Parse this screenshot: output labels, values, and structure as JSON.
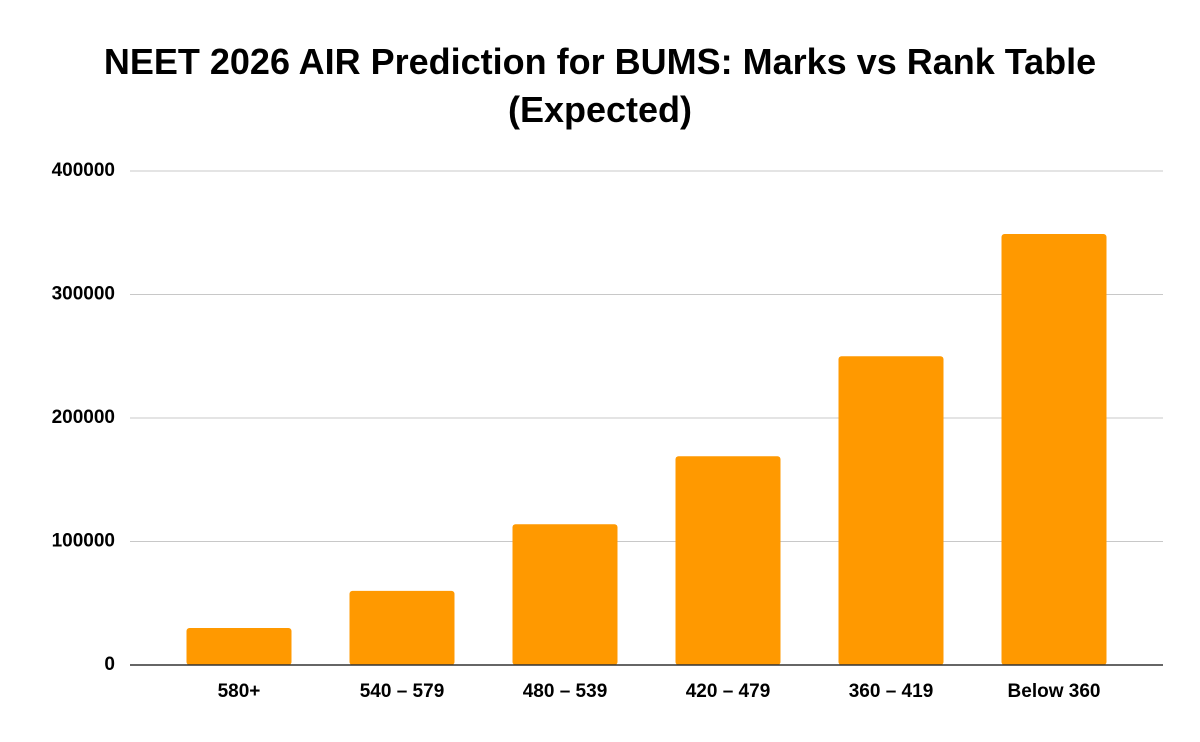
{
  "chart_data": {
    "type": "bar",
    "title": "NEET 2026 AIR Prediction for BUMS: Marks vs Rank Table (Expected)",
    "categories": [
      "580+",
      "540 – 579",
      "480 – 539",
      "420 – 479",
      "360 – 419",
      "Below 360"
    ],
    "values": [
      30000,
      60000,
      114000,
      169000,
      250000,
      349000
    ],
    "color": "#ff9900",
    "ylim": [
      0,
      400000
    ],
    "yticks": [
      0,
      100000,
      200000,
      300000,
      400000
    ],
    "grid": true
  }
}
